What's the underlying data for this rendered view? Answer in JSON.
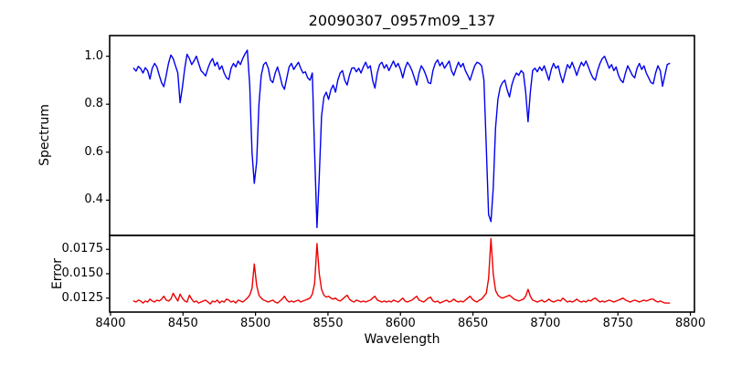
{
  "chart_data": {
    "type": "line",
    "title": "20090307_0957m09_137",
    "xlabel": "Wavelength",
    "grid": false,
    "legend": null,
    "xlim": [
      8399.4,
      8802.8
    ],
    "x_ticks": [
      8400,
      8450,
      8500,
      8550,
      8600,
      8650,
      8700,
      8750,
      8800
    ],
    "x_start": 8416.0,
    "x_step": 1.6,
    "panels": [
      {
        "ylabel": "Spectrum",
        "color": "#0000ee",
        "ylim": [
          0.253,
          1.086
        ],
        "y_tick_labels": [
          "1.0",
          "0.8",
          "0.6",
          "0.4"
        ],
        "y_tick_values": [
          1.0,
          0.8,
          0.6,
          0.4
        ],
        "values": [
          0.95,
          0.938,
          0.958,
          0.948,
          0.93,
          0.952,
          0.94,
          0.905,
          0.95,
          0.97,
          0.955,
          0.92,
          0.89,
          0.873,
          0.92,
          0.97,
          1.005,
          0.99,
          0.96,
          0.93,
          0.806,
          0.87,
          0.95,
          1.008,
          0.99,
          0.965,
          0.98,
          1.0,
          0.97,
          0.94,
          0.93,
          0.918,
          0.95,
          0.975,
          0.99,
          0.96,
          0.975,
          0.945,
          0.96,
          0.93,
          0.91,
          0.903,
          0.95,
          0.97,
          0.955,
          0.98,
          0.965,
          0.99,
          1.01,
          1.025,
          0.88,
          0.6,
          0.47,
          0.56,
          0.8,
          0.92,
          0.965,
          0.975,
          0.95,
          0.9,
          0.89,
          0.93,
          0.955,
          0.92,
          0.88,
          0.862,
          0.91,
          0.955,
          0.97,
          0.945,
          0.96,
          0.975,
          0.95,
          0.93,
          0.935,
          0.91,
          0.9,
          0.93,
          0.6,
          0.286,
          0.5,
          0.75,
          0.83,
          0.85,
          0.82,
          0.86,
          0.88,
          0.85,
          0.9,
          0.93,
          0.94,
          0.9,
          0.88,
          0.92,
          0.95,
          0.952,
          0.935,
          0.95,
          0.93,
          0.955,
          0.975,
          0.95,
          0.96,
          0.9,
          0.867,
          0.93,
          0.965,
          0.975,
          0.95,
          0.965,
          0.94,
          0.96,
          0.98,
          0.955,
          0.97,
          0.945,
          0.91,
          0.95,
          0.975,
          0.96,
          0.94,
          0.91,
          0.88,
          0.93,
          0.96,
          0.945,
          0.92,
          0.89,
          0.886,
          0.94,
          0.97,
          0.985,
          0.96,
          0.975,
          0.95,
          0.965,
          0.98,
          0.94,
          0.92,
          0.95,
          0.975,
          0.955,
          0.97,
          0.94,
          0.92,
          0.9,
          0.93,
          0.96,
          0.975,
          0.97,
          0.96,
          0.9,
          0.62,
          0.34,
          0.311,
          0.45,
          0.7,
          0.82,
          0.87,
          0.89,
          0.9,
          0.86,
          0.83,
          0.88,
          0.91,
          0.93,
          0.92,
          0.94,
          0.93,
          0.85,
          0.727,
          0.85,
          0.94,
          0.95,
          0.935,
          0.955,
          0.94,
          0.96,
          0.93,
          0.9,
          0.945,
          0.97,
          0.95,
          0.96,
          0.92,
          0.89,
          0.93,
          0.965,
          0.95,
          0.975,
          0.95,
          0.92,
          0.95,
          0.975,
          0.96,
          0.98,
          0.955,
          0.93,
          0.91,
          0.9,
          0.94,
          0.97,
          0.99,
          1.0,
          0.975,
          0.95,
          0.965,
          0.94,
          0.955,
          0.92,
          0.9,
          0.89,
          0.93,
          0.96,
          0.94,
          0.92,
          0.91,
          0.95,
          0.97,
          0.945,
          0.96,
          0.93,
          0.91,
          0.89,
          0.885,
          0.93,
          0.96,
          0.94,
          0.875,
          0.92,
          0.965,
          0.97
        ]
      },
      {
        "ylabel": "Error",
        "color": "#ee0000",
        "ylim": [
          0.01107,
          0.01893
        ],
        "y_tick_labels": [
          "0.0175",
          "0.0150",
          "0.0125"
        ],
        "y_tick_values": [
          0.0175,
          0.015,
          0.0125
        ],
        "values": [
          0.0122,
          0.0121,
          0.0123,
          0.0122,
          0.012,
          0.0122,
          0.0121,
          0.0124,
          0.0122,
          0.0121,
          0.0123,
          0.0122,
          0.0124,
          0.0127,
          0.0123,
          0.0122,
          0.0124,
          0.013,
          0.0126,
          0.0122,
          0.0129,
          0.0125,
          0.0122,
          0.0121,
          0.0128,
          0.0124,
          0.0121,
          0.0122,
          0.012,
          0.0121,
          0.0122,
          0.0123,
          0.0121,
          0.0119,
          0.0122,
          0.0121,
          0.0123,
          0.012,
          0.0122,
          0.0121,
          0.0124,
          0.0123,
          0.0121,
          0.0122,
          0.012,
          0.0123,
          0.0122,
          0.0121,
          0.0123,
          0.0125,
          0.0128,
          0.0135,
          0.016,
          0.0138,
          0.0128,
          0.0125,
          0.0123,
          0.0122,
          0.0121,
          0.0122,
          0.0123,
          0.0121,
          0.012,
          0.0122,
          0.0124,
          0.0127,
          0.0123,
          0.0121,
          0.0122,
          0.0121,
          0.0122,
          0.0123,
          0.0121,
          0.0122,
          0.0123,
          0.0124,
          0.0125,
          0.0129,
          0.014,
          0.0181,
          0.015,
          0.0134,
          0.0128,
          0.0126,
          0.0127,
          0.0125,
          0.0124,
          0.0125,
          0.0123,
          0.0122,
          0.0124,
          0.0126,
          0.0128,
          0.0124,
          0.0122,
          0.0121,
          0.0123,
          0.0122,
          0.0121,
          0.0122,
          0.0121,
          0.0122,
          0.0123,
          0.0125,
          0.0127,
          0.0123,
          0.0122,
          0.0121,
          0.0122,
          0.0121,
          0.0122,
          0.0121,
          0.0123,
          0.0122,
          0.0121,
          0.0123,
          0.0125,
          0.0122,
          0.0121,
          0.0122,
          0.0123,
          0.0125,
          0.0127,
          0.0123,
          0.0122,
          0.0121,
          0.0123,
          0.0125,
          0.0126,
          0.0122,
          0.0121,
          0.0122,
          0.012,
          0.0121,
          0.0122,
          0.0123,
          0.0121,
          0.0122,
          0.0124,
          0.0122,
          0.0121,
          0.0122,
          0.0121,
          0.0123,
          0.0125,
          0.0127,
          0.0124,
          0.0122,
          0.0121,
          0.0123,
          0.0124,
          0.0127,
          0.013,
          0.0145,
          0.0186,
          0.015,
          0.0133,
          0.0128,
          0.0126,
          0.0125,
          0.0126,
          0.0127,
          0.0128,
          0.0126,
          0.0124,
          0.0123,
          0.0122,
          0.0123,
          0.0124,
          0.0127,
          0.0134,
          0.0127,
          0.0123,
          0.0122,
          0.0121,
          0.0122,
          0.0123,
          0.0121,
          0.0122,
          0.0124,
          0.0122,
          0.0121,
          0.0122,
          0.0123,
          0.0122,
          0.0125,
          0.0123,
          0.0121,
          0.0122,
          0.0121,
          0.0122,
          0.0124,
          0.0122,
          0.0121,
          0.0122,
          0.0121,
          0.0123,
          0.0122,
          0.0124,
          0.0125,
          0.0123,
          0.0121,
          0.0122,
          0.0121,
          0.0122,
          0.0123,
          0.0122,
          0.0121,
          0.0122,
          0.0123,
          0.0124,
          0.0125,
          0.0123,
          0.0122,
          0.0121,
          0.0122,
          0.0123,
          0.0122,
          0.0121,
          0.0122,
          0.0123,
          0.0122,
          0.0123,
          0.0124,
          0.0124,
          0.0122,
          0.0121,
          0.0122,
          0.0121,
          0.012,
          0.012,
          0.012
        ]
      }
    ]
  }
}
